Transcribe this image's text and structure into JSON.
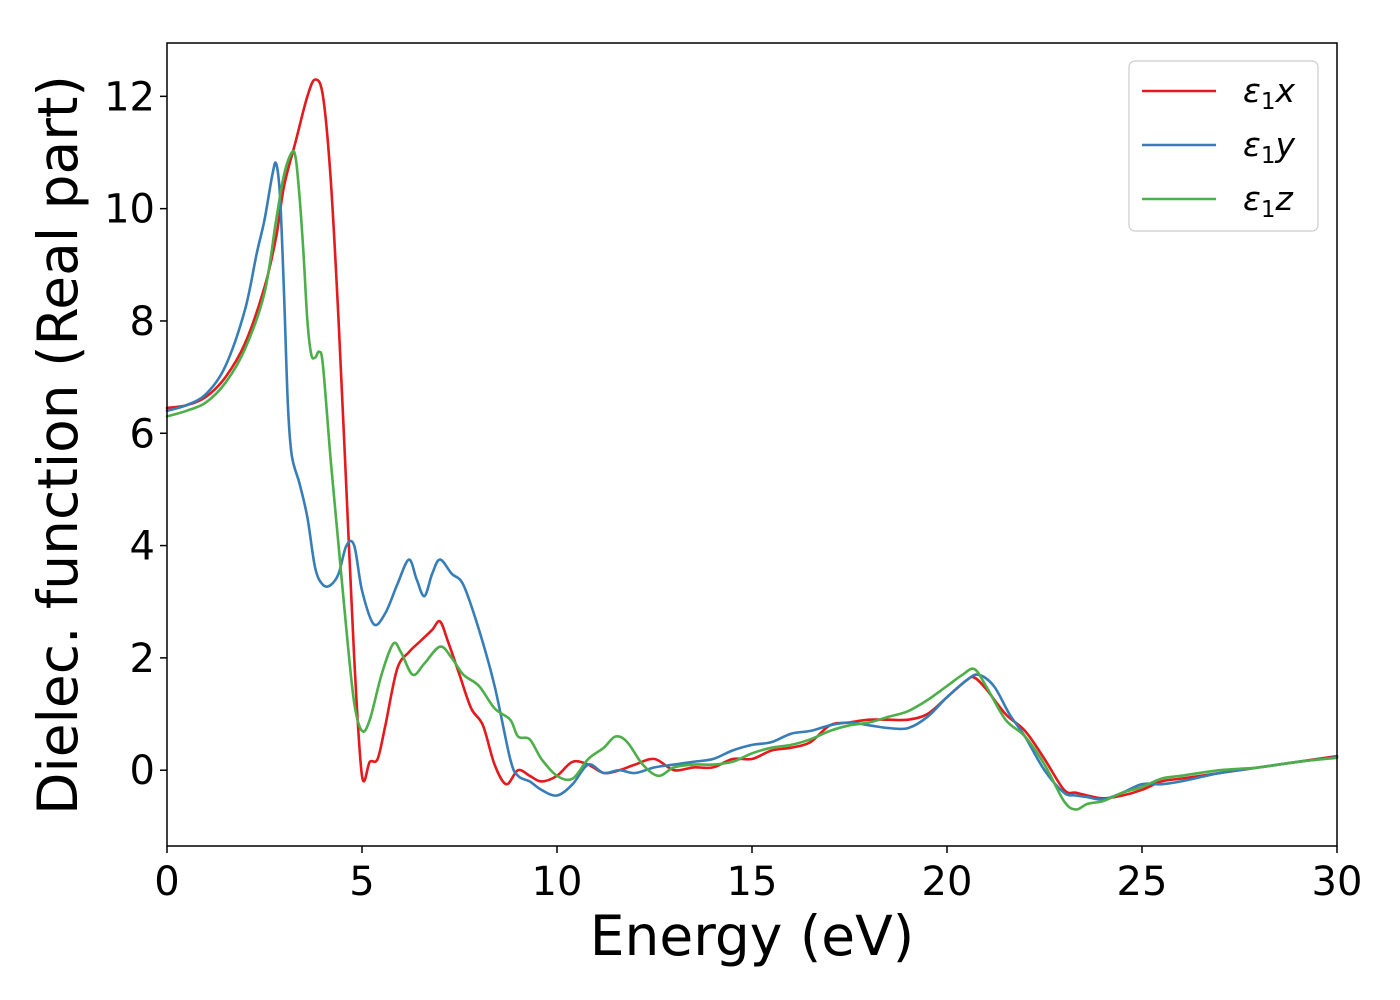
{
  "chart_data": {
    "type": "line",
    "title": "",
    "xlabel": "Energy (eV)",
    "ylabel": "Dielec. function (Real part)",
    "xlim": [
      0,
      30
    ],
    "ylim": [
      -1.35,
      12.95
    ],
    "xticks": [
      0,
      5,
      10,
      15,
      20,
      25,
      30
    ],
    "yticks": [
      0,
      2,
      4,
      6,
      8,
      10,
      12
    ],
    "grid": false,
    "legend_position": "top-right",
    "series": [
      {
        "name": "ε1x",
        "legend_base": "ε",
        "legend_sub": "1",
        "legend_suffix": "x",
        "color": "#e41a1c",
        "x": [
          0,
          0.5,
          1.0,
          1.5,
          2.0,
          2.5,
          2.8,
          3.0,
          3.3,
          3.6,
          3.8,
          4.0,
          4.2,
          4.4,
          4.6,
          4.8,
          5.0,
          5.2,
          5.4,
          5.6,
          5.9,
          6.2,
          6.5,
          6.8,
          7.0,
          7.2,
          7.5,
          7.8,
          8.1,
          8.4,
          8.7,
          9.0,
          9.3,
          9.6,
          10.0,
          10.4,
          10.8,
          11.2,
          11.6,
          12.0,
          12.5,
          13.0,
          13.5,
          14.0,
          14.5,
          15.0,
          15.5,
          16.0,
          16.5,
          17.0,
          17.5,
          18.0,
          18.5,
          19.0,
          19.5,
          20.0,
          20.5,
          20.7,
          21.0,
          21.5,
          22.0,
          22.5,
          23.0,
          23.3,
          23.6,
          24.0,
          24.5,
          25.0,
          25.5,
          26.0,
          27.0,
          28.0,
          29.0,
          30.0
        ],
        "y": [
          6.45,
          6.5,
          6.65,
          7.0,
          7.6,
          8.6,
          9.5,
          10.4,
          11.2,
          12.0,
          12.3,
          12.0,
          10.5,
          8.0,
          5.0,
          2.0,
          -0.1,
          0.15,
          0.2,
          0.8,
          1.8,
          2.1,
          2.3,
          2.5,
          2.65,
          2.3,
          1.7,
          1.1,
          0.8,
          0.1,
          -0.25,
          0.0,
          -0.1,
          -0.2,
          -0.1,
          0.15,
          0.1,
          -0.05,
          0.0,
          0.1,
          0.2,
          0.0,
          0.05,
          0.05,
          0.2,
          0.2,
          0.35,
          0.4,
          0.5,
          0.8,
          0.85,
          0.9,
          0.9,
          0.9,
          1.0,
          1.3,
          1.6,
          1.65,
          1.45,
          1.0,
          0.7,
          0.2,
          -0.35,
          -0.4,
          -0.45,
          -0.5,
          -0.45,
          -0.35,
          -0.2,
          -0.15,
          -0.05,
          0.05,
          0.15,
          0.25
        ]
      },
      {
        "name": "ε1y",
        "legend_base": "ε",
        "legend_sub": "1",
        "legend_suffix": "y",
        "color": "#377eb8",
        "x": [
          0,
          0.5,
          1.0,
          1.5,
          2.0,
          2.3,
          2.5,
          2.7,
          2.8,
          2.9,
          3.0,
          3.1,
          3.2,
          3.4,
          3.6,
          3.8,
          4.0,
          4.2,
          4.4,
          4.6,
          4.8,
          5.0,
          5.3,
          5.6,
          5.9,
          6.2,
          6.4,
          6.6,
          6.8,
          7.0,
          7.3,
          7.6,
          8.0,
          8.4,
          8.8,
          9.0,
          9.3,
          9.6,
          10.0,
          10.4,
          10.8,
          11.2,
          11.6,
          12.0,
          12.5,
          13.0,
          13.5,
          14.0,
          14.5,
          15.0,
          15.5,
          16.0,
          16.5,
          17.0,
          17.5,
          18.0,
          18.5,
          19.0,
          19.5,
          20.0,
          20.5,
          20.8,
          21.2,
          21.6,
          22.0,
          22.5,
          23.0,
          23.3,
          23.6,
          24.0,
          24.5,
          25.0,
          25.5,
          26.0,
          27.0,
          28.0,
          29.0,
          30.0
        ],
        "y": [
          6.4,
          6.5,
          6.7,
          7.2,
          8.2,
          9.2,
          9.8,
          10.6,
          10.8,
          10.2,
          8.5,
          6.5,
          5.6,
          5.1,
          4.5,
          3.6,
          3.3,
          3.3,
          3.5,
          4.0,
          4.0,
          3.2,
          2.6,
          2.8,
          3.3,
          3.75,
          3.4,
          3.1,
          3.5,
          3.75,
          3.5,
          3.3,
          2.5,
          1.5,
          0.2,
          -0.1,
          -0.2,
          -0.35,
          -0.45,
          -0.25,
          0.1,
          -0.05,
          0.0,
          -0.05,
          0.05,
          0.1,
          0.15,
          0.2,
          0.35,
          0.45,
          0.5,
          0.65,
          0.7,
          0.8,
          0.85,
          0.8,
          0.75,
          0.75,
          0.95,
          1.3,
          1.6,
          1.7,
          1.5,
          1.0,
          0.6,
          0.0,
          -0.4,
          -0.45,
          -0.48,
          -0.52,
          -0.4,
          -0.25,
          -0.25,
          -0.2,
          -0.05,
          0.05,
          0.15,
          0.23
        ]
      },
      {
        "name": "ε1z",
        "legend_base": "ε",
        "legend_sub": "1",
        "legend_suffix": "z",
        "color": "#4daf4a",
        "x": [
          0,
          0.5,
          1.0,
          1.5,
          2.0,
          2.5,
          2.8,
          3.0,
          3.2,
          3.3,
          3.4,
          3.5,
          3.6,
          3.7,
          3.8,
          3.9,
          4.0,
          4.2,
          4.4,
          4.6,
          4.8,
          5.0,
          5.2,
          5.5,
          5.8,
          6.0,
          6.3,
          6.6,
          7.0,
          7.3,
          7.6,
          8.0,
          8.4,
          8.8,
          9.0,
          9.3,
          9.6,
          10.0,
          10.4,
          10.8,
          11.2,
          11.5,
          11.8,
          12.2,
          12.6,
          13.0,
          13.5,
          14.0,
          14.5,
          15.0,
          15.5,
          16.0,
          16.5,
          17.0,
          17.5,
          18.0,
          18.5,
          19.0,
          19.5,
          20.0,
          20.4,
          20.7,
          21.0,
          21.5,
          22.0,
          22.5,
          23.0,
          23.3,
          23.6,
          24.0,
          24.5,
          25.0,
          25.5,
          26.0,
          27.0,
          28.0,
          29.0,
          30.0
        ],
        "y": [
          6.3,
          6.4,
          6.55,
          6.9,
          7.5,
          8.5,
          9.8,
          10.6,
          11.0,
          10.9,
          10.2,
          9.2,
          8.0,
          7.4,
          7.35,
          7.45,
          7.2,
          5.5,
          4.0,
          2.5,
          1.2,
          0.7,
          0.9,
          1.7,
          2.25,
          2.1,
          1.7,
          1.9,
          2.2,
          2.0,
          1.7,
          1.5,
          1.1,
          0.9,
          0.6,
          0.55,
          0.2,
          -0.1,
          -0.15,
          0.2,
          0.4,
          0.6,
          0.5,
          0.1,
          -0.1,
          0.05,
          0.1,
          0.1,
          0.15,
          0.3,
          0.4,
          0.45,
          0.55,
          0.7,
          0.8,
          0.85,
          0.95,
          1.05,
          1.25,
          1.5,
          1.7,
          1.8,
          1.5,
          0.9,
          0.6,
          0.1,
          -0.55,
          -0.7,
          -0.6,
          -0.55,
          -0.4,
          -0.3,
          -0.15,
          -0.1,
          0.0,
          0.05,
          0.15,
          0.22
        ]
      }
    ]
  }
}
